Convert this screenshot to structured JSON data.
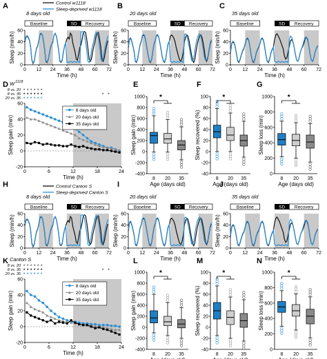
{
  "colors": {
    "control": "#111111",
    "deprived": "#2b8fd6",
    "grey_light": "#bbbbbb",
    "grey_dark": "#555555",
    "shade": "#c9c9c9",
    "bar_black": "#000000",
    "box_blue": "#1f7fc4",
    "box_light": "#cfcfcf",
    "box_mid": "#8a8a8a"
  },
  "panel_letters": [
    "A",
    "B",
    "C",
    "D",
    "E",
    "F",
    "G",
    "H",
    "I",
    "J",
    "K",
    "L",
    "M",
    "N"
  ],
  "headers": {
    "A": "8 days old",
    "B": "20 days old",
    "C": "35 days old",
    "H": "8 days old",
    "I": "20 days old",
    "J": "35 days old",
    "D": "W",
    "D_sup": "1118",
    "K": "Canton S"
  },
  "legend_top": {
    "control": "Control w1118",
    "deprived": "Sleep-deprived w1118"
  },
  "legend_bottom": {
    "control": "Control Canton S",
    "deprived": "Sleep-deprived Canton S"
  },
  "bars": {
    "baseline": "Baseline",
    "sd": "SD",
    "recovery": "Recovery"
  },
  "legend_age": [
    "8 days old",
    "20 days old",
    "35 days old"
  ],
  "comparisons": [
    "8 vs. 20",
    "8 vs. 35",
    "20 vs. 35"
  ],
  "star": "*",
  "chart_data": [
    {
      "id": "timecourse-w1118",
      "type": "line",
      "ylabel": "Sleep (min/h)",
      "xlabel": "Time (h)",
      "xlim": [
        0,
        72
      ],
      "ylim": [
        0,
        60
      ],
      "xticks": [
        0,
        12,
        24,
        36,
        48,
        60,
        72
      ],
      "yticks": [
        0,
        20,
        40,
        60
      ],
      "series_by_age": {
        "8": {
          "control": [
            40,
            48,
            50,
            47,
            42,
            30,
            8,
            2,
            6,
            18,
            28,
            33,
            42,
            53,
            54,
            52,
            41,
            26,
            6,
            4,
            9,
            20,
            30,
            36,
            40,
            52,
            54,
            50,
            38,
            24,
            6,
            4,
            8,
            22,
            32,
            38,
            45,
            48,
            45,
            55,
            52,
            38,
            30,
            22,
            10,
            8,
            18,
            30,
            34,
            44,
            56,
            58,
            56,
            44,
            28,
            10,
            6,
            10,
            22,
            32,
            40,
            50,
            56,
            56,
            44,
            30,
            10,
            6,
            12,
            24,
            34,
            42
          ],
          "deprived": [
            42,
            49,
            51,
            48,
            43,
            31,
            9,
            3,
            7,
            19,
            29,
            34,
            43,
            54,
            55,
            52,
            42,
            27,
            7,
            5,
            10,
            21,
            31,
            37,
            41,
            52,
            55,
            50,
            39,
            25,
            7,
            5,
            9,
            23,
            33,
            39,
            4,
            5,
            4,
            6,
            5,
            4,
            6,
            5,
            4,
            6,
            5,
            4,
            57,
            58,
            57,
            52,
            40,
            24,
            6,
            4,
            10,
            24,
            34,
            42,
            52,
            56,
            56,
            46,
            30,
            10,
            6,
            10,
            24,
            34,
            42,
            50
          ]
        },
        "20": {
          "control": [
            30,
            44,
            46,
            40,
            32,
            22,
            6,
            4,
            10,
            22,
            34,
            40,
            50,
            52,
            50,
            40,
            28,
            16,
            6,
            4,
            10,
            24,
            36,
            42,
            50,
            52,
            48,
            38,
            26,
            14,
            6,
            4,
            10,
            24,
            36,
            40,
            50,
            52,
            50,
            46,
            40,
            30,
            22,
            14,
            8,
            6,
            12,
            22,
            40,
            48,
            52,
            50,
            42,
            30,
            18,
            8,
            4,
            10,
            24,
            36,
            44,
            50,
            52,
            48,
            38,
            26,
            10,
            6,
            12,
            24,
            36,
            42
          ],
          "deprived": [
            32,
            45,
            47,
            41,
            33,
            23,
            7,
            5,
            11,
            23,
            35,
            41,
            51,
            53,
            51,
            41,
            29,
            17,
            7,
            5,
            11,
            25,
            37,
            43,
            51,
            53,
            49,
            39,
            27,
            15,
            7,
            5,
            11,
            25,
            37,
            41,
            6,
            5,
            4,
            6,
            5,
            4,
            6,
            5,
            4,
            6,
            5,
            4,
            52,
            54,
            50,
            42,
            32,
            20,
            8,
            6,
            12,
            26,
            38,
            46,
            52,
            54,
            50,
            40,
            28,
            14,
            8,
            8,
            14,
            26,
            38,
            44
          ]
        },
        "35": {
          "control": [
            20,
            36,
            40,
            38,
            30,
            18,
            6,
            4,
            10,
            18,
            24,
            28,
            36,
            44,
            46,
            42,
            30,
            16,
            6,
            4,
            10,
            20,
            26,
            30,
            36,
            44,
            46,
            42,
            30,
            16,
            6,
            4,
            10,
            20,
            26,
            30,
            44,
            52,
            54,
            50,
            46,
            40,
            34,
            28,
            16,
            10,
            12,
            22,
            32,
            42,
            44,
            40,
            30,
            18,
            8,
            6,
            12,
            22,
            28,
            32,
            38,
            46,
            48,
            44,
            32,
            18,
            8,
            6,
            12,
            22,
            28,
            32
          ],
          "deprived": [
            22,
            37,
            41,
            39,
            31,
            19,
            7,
            5,
            11,
            19,
            25,
            29,
            37,
            45,
            47,
            43,
            31,
            17,
            7,
            5,
            11,
            21,
            27,
            31,
            37,
            45,
            47,
            43,
            31,
            17,
            7,
            5,
            11,
            21,
            27,
            31,
            6,
            5,
            4,
            6,
            5,
            4,
            6,
            5,
            4,
            6,
            5,
            4,
            44,
            50,
            48,
            40,
            30,
            18,
            8,
            6,
            12,
            22,
            28,
            34,
            42,
            48,
            48,
            42,
            32,
            18,
            8,
            6,
            12,
            22,
            28,
            34
          ]
        }
      }
    },
    {
      "id": "sleep-gain-w1118",
      "type": "line",
      "ylabel": "Sleep gain (min)",
      "xlabel": "Time (h)",
      "xlim": [
        0,
        24
      ],
      "ylim": [
        -20,
        60
      ],
      "yticks": [
        -20,
        0,
        20,
        40,
        60
      ],
      "xticks": [
        0,
        6,
        12,
        18,
        24
      ],
      "series": [
        {
          "name": "8 days old",
          "values": [
            55,
            52,
            50,
            48,
            46,
            44,
            42,
            40,
            38,
            36,
            34,
            32,
            28,
            24,
            20,
            16,
            12,
            10,
            8,
            6,
            4,
            4,
            2,
            0
          ]
        },
        {
          "name": "20 days old",
          "values": [
            42,
            40,
            40,
            38,
            36,
            34,
            32,
            30,
            28,
            26,
            24,
            22,
            20,
            16,
            14,
            12,
            10,
            8,
            6,
            5,
            4,
            3,
            2,
            1
          ]
        },
        {
          "name": "35 days old",
          "values": [
            10,
            9,
            11,
            10,
            8,
            9,
            8,
            7,
            7,
            6,
            6,
            8,
            6,
            5,
            6,
            4,
            3,
            2,
            2,
            1,
            1,
            0,
            -1,
            -2
          ]
        }
      ]
    },
    {
      "id": "sleep-gain-box-w1118",
      "type": "box",
      "ylabel": "Sleep gain (min)",
      "xlabel": "Age (days old)",
      "categories": [
        "8",
        "20",
        "35"
      ],
      "ylim": [
        -400,
        1000
      ],
      "yticks": [
        -400,
        -200,
        0,
        200,
        400,
        600,
        800,
        1000
      ],
      "boxes": [
        {
          "min": -10,
          "q1": 150,
          "median": 290,
          "q3": 350,
          "max": 650
        },
        {
          "min": -10,
          "q1": 150,
          "median": 230,
          "q3": 330,
          "max": 580
        },
        {
          "min": -150,
          "q1": 30,
          "median": 120,
          "q3": 200,
          "max": 450
        }
      ]
    },
    {
      "id": "sleep-recovered-box-w1118",
      "type": "box",
      "ylabel": "Sleep recovered (%)",
      "xlabel": "Age (days old)",
      "categories": [
        "8",
        "20",
        "35"
      ],
      "ylim": [
        -40,
        100
      ],
      "yticks": [
        -40,
        -20,
        0,
        20,
        40,
        60,
        80,
        100
      ],
      "boxes": [
        {
          "min": 0,
          "q1": 25,
          "median": 36,
          "q3": 48,
          "max": 78
        },
        {
          "min": 0,
          "q1": 20,
          "median": 30,
          "q3": 44,
          "max": 70
        },
        {
          "min": -10,
          "q1": 10,
          "median": 20,
          "q3": 30,
          "max": 55
        }
      ]
    },
    {
      "id": "sleep-loss-box-w1118",
      "type": "box",
      "ylabel": "Sleep loss (min)",
      "xlabel": "Age (days old)",
      "categories": [
        "8",
        "20",
        "35"
      ],
      "ylim": [
        0,
        1000
      ],
      "yticks": [
        0,
        200,
        400,
        600,
        800,
        1000
      ],
      "boxes": [
        {
          "min": 220,
          "q1": 370,
          "median": 440,
          "q3": 520,
          "max": 680
        },
        {
          "min": 200,
          "q1": 360,
          "median": 430,
          "q3": 510,
          "max": 660
        },
        {
          "min": 150,
          "q1": 330,
          "median": 410,
          "q3": 500,
          "max": 650
        }
      ]
    },
    {
      "id": "sleep-gain-cantons",
      "type": "line",
      "ylabel": "Sleep gain (min)",
      "xlabel": "Time (h)",
      "xlim": [
        0,
        24
      ],
      "ylim": [
        -20,
        60
      ],
      "yticks": [
        -20,
        0,
        20,
        40,
        60
      ],
      "xticks": [
        0,
        6,
        12,
        18,
        24
      ],
      "series": [
        {
          "name": "8 days old",
          "values": [
            45,
            40,
            38,
            33,
            30,
            25,
            20,
            16,
            12,
            10,
            8,
            6,
            6,
            5,
            4,
            4,
            3,
            3,
            2,
            2,
            2,
            1,
            1,
            0
          ]
        },
        {
          "name": "20 days old",
          "values": [
            30,
            25,
            22,
            20,
            18,
            14,
            12,
            10,
            8,
            7,
            6,
            5,
            4,
            3,
            2,
            2,
            1,
            1,
            0,
            -1,
            -2,
            -3,
            -4,
            -4
          ]
        },
        {
          "name": "35 days old",
          "values": [
            18,
            14,
            12,
            10,
            8,
            6,
            8,
            4,
            6,
            5,
            4,
            8,
            5,
            3,
            2,
            2,
            0,
            -2,
            -1,
            -3,
            -4,
            -6,
            -8,
            -10
          ]
        }
      ]
    },
    {
      "id": "sleep-gain-box-cantons",
      "type": "box",
      "ylabel": "Sleep gain (min)",
      "xlabel": "Age (days old)",
      "categories": [
        "8",
        "20",
        "35"
      ],
      "ylim": [
        -400,
        1000
      ],
      "yticks": [
        -400,
        -200,
        0,
        200,
        400,
        600,
        800,
        1000
      ],
      "boxes": [
        {
          "min": -100,
          "q1": 80,
          "median": 170,
          "q3": 300,
          "max": 600
        },
        {
          "min": -150,
          "q1": 30,
          "median": 100,
          "q3": 200,
          "max": 450
        },
        {
          "min": -200,
          "q1": -10,
          "median": 60,
          "q3": 140,
          "max": 360
        }
      ]
    },
    {
      "id": "sleep-recovered-box-cantons",
      "type": "box",
      "ylabel": "Sleep recovered (%)",
      "xlabel": "Age (days old)",
      "categories": [
        "8",
        "20",
        "35"
      ],
      "ylim": [
        -40,
        100
      ],
      "yticks": [
        -40,
        -20,
        0,
        20,
        40,
        60,
        80,
        100
      ],
      "boxes": [
        {
          "min": -15,
          "q1": 15,
          "median": 30,
          "q3": 45,
          "max": 75
        },
        {
          "min": -20,
          "q1": 5,
          "median": 18,
          "q3": 30,
          "max": 55
        },
        {
          "min": -25,
          "q1": 0,
          "median": 12,
          "q3": 25,
          "max": 50
        }
      ]
    },
    {
      "id": "sleep-loss-box-cantons",
      "type": "box",
      "ylabel": "Sleep loss (min)",
      "xlabel": "Age (days old)",
      "categories": [
        "8",
        "20",
        "35"
      ],
      "ylim": [
        0,
        1000
      ],
      "yticks": [
        0,
        200,
        400,
        600,
        800,
        1000
      ],
      "boxes": [
        {
          "min": 300,
          "q1": 480,
          "median": 550,
          "q3": 620,
          "max": 760
        },
        {
          "min": 250,
          "q1": 430,
          "median": 500,
          "q3": 580,
          "max": 720
        },
        {
          "min": 150,
          "q1": 330,
          "median": 430,
          "q3": 520,
          "max": 680
        }
      ]
    }
  ]
}
